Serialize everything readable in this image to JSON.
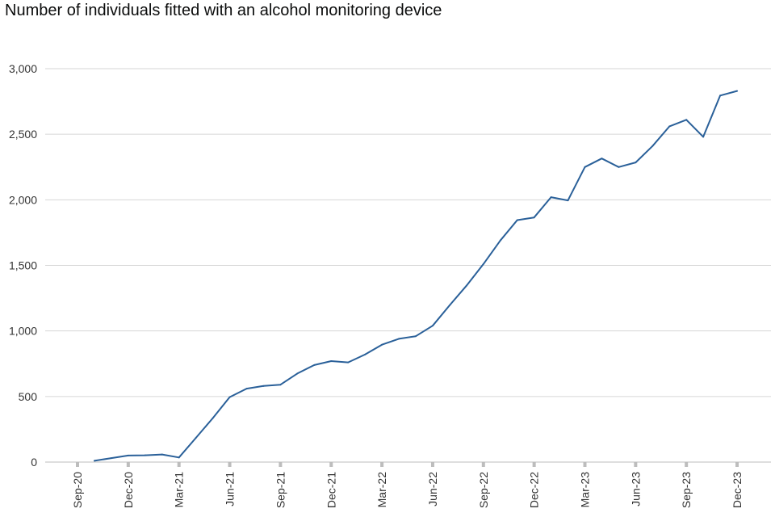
{
  "chart_data": {
    "type": "line",
    "title": "Number of individuals fitted with an alcohol monitoring device",
    "xlabel": "",
    "ylabel": "",
    "ylim": [
      0,
      3000
    ],
    "yticks": [
      0,
      500,
      1000,
      1500,
      2000,
      2500,
      3000
    ],
    "ytick_labels": [
      "0",
      "500",
      "1,000",
      "1,500",
      "2,000",
      "2,500",
      "3,000"
    ],
    "xtick_labels": [
      "Sep-20",
      "Dec-20",
      "Mar-21",
      "Jun-21",
      "Sep-21",
      "Dec-21",
      "Mar-22",
      "Jun-22",
      "Sep-22",
      "Dec-22",
      "Mar-23",
      "Jun-23",
      "Sep-23",
      "Dec-23"
    ],
    "grid": true,
    "line_color": "#2a6099",
    "x": [
      "Oct-20",
      "Nov-20",
      "Dec-20",
      "Jan-21",
      "Feb-21",
      "Mar-21",
      "Apr-21",
      "May-21",
      "Jun-21",
      "Jul-21",
      "Aug-21",
      "Sep-21",
      "Oct-21",
      "Nov-21",
      "Dec-21",
      "Jan-22",
      "Feb-22",
      "Mar-22",
      "Apr-22",
      "May-22",
      "Jun-22",
      "Jul-22",
      "Aug-22",
      "Sep-22",
      "Oct-22",
      "Nov-22",
      "Dec-22",
      "Jan-23",
      "Feb-23",
      "Mar-23",
      "Apr-23",
      "May-23",
      "Jun-23",
      "Jul-23",
      "Aug-23",
      "Sep-23",
      "Oct-23",
      "Nov-23",
      "Dec-23"
    ],
    "series": [
      {
        "values": [
          10,
          30,
          50,
          52,
          58,
          35,
          185,
          335,
          495,
          560,
          580,
          590,
          675,
          740,
          770,
          760,
          820,
          895,
          940,
          960,
          1040,
          1195,
          1345,
          1510,
          1690,
          1845,
          1865,
          2020,
          1995,
          2250,
          2315,
          2250,
          2285,
          2410,
          2560,
          2610,
          2480,
          2795,
          2830
        ]
      }
    ]
  }
}
